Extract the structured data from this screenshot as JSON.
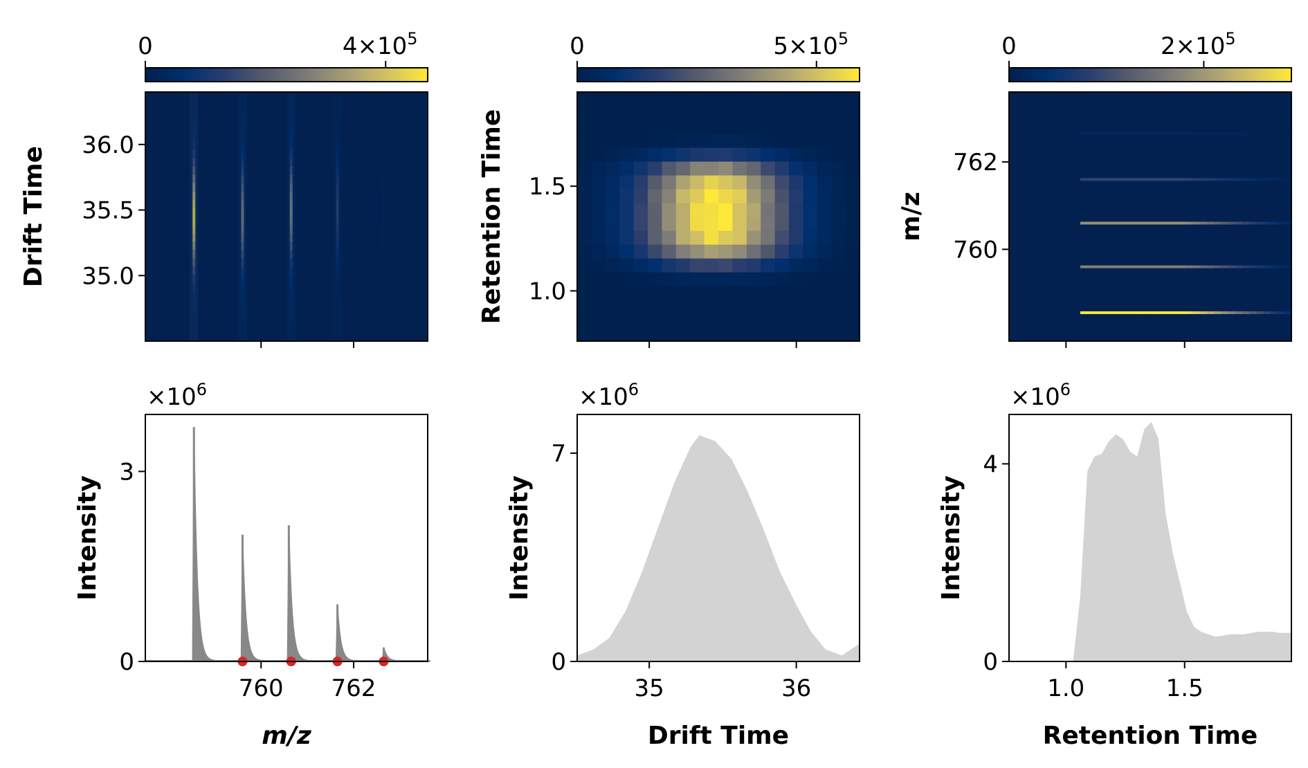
{
  "colors": {
    "colormap": [
      "#00204d",
      "#00306f",
      "#2c3e6e",
      "#575c6d",
      "#7c7b78",
      "#a69d75",
      "#d3c164",
      "#fee838"
    ],
    "background": "#022150",
    "profile_fill": "#d3d3d3",
    "spectrum_line": "#888888",
    "marker": "#d62728"
  },
  "chart_data": [
    {
      "id": "mz-vs-drift",
      "type": "heatmap",
      "xlabel": "",
      "ylabel": "Drift Time",
      "xlim": [
        757.5,
        763.6
      ],
      "ylim": [
        34.5,
        36.4
      ],
      "xticks": [
        760,
        762
      ],
      "xtick_labels": [
        "",
        ""
      ],
      "yticks": [
        35.0,
        35.5,
        36.0
      ],
      "ytick_labels": [
        "35.0",
        "35.5",
        "36.0"
      ],
      "colorbar": {
        "min": 0,
        "max": 470000,
        "ticks": [
          0,
          400000
        ],
        "tick_labels": [
          "0",
          "4×10",
          "5"
        ]
      },
      "lines": [
        {
          "x": 758.55,
          "y_center": 35.45,
          "width": 0.4,
          "peak": 470000
        },
        {
          "x": 759.6,
          "y_center": 35.45,
          "width": 0.4,
          "peak": 300000
        },
        {
          "x": 760.65,
          "y_center": 35.5,
          "width": 0.4,
          "peak": 320000
        },
        {
          "x": 761.65,
          "y_center": 35.5,
          "width": 0.4,
          "peak": 150000
        },
        {
          "x": 762.65,
          "y_center": 35.5,
          "width": 0.4,
          "peak": 30000
        }
      ]
    },
    {
      "id": "drift-vs-retention",
      "type": "heatmap",
      "xlabel": "",
      "ylabel": "Retention Time",
      "xlim": [
        34.51,
        36.43
      ],
      "ylim": [
        0.76,
        1.95
      ],
      "xticks": [
        35,
        36
      ],
      "xtick_labels": [
        "",
        ""
      ],
      "yticks": [
        1.0,
        1.5
      ],
      "ytick_labels": [
        "1.0",
        "1.5"
      ],
      "colorbar": {
        "min": 0,
        "max": 590000,
        "ticks": [
          0,
          500000
        ],
        "tick_labels": [
          "0",
          "5×10",
          "5"
        ]
      },
      "blob": {
        "x_center": 35.45,
        "x_sigma": 0.33,
        "y_center": 1.38,
        "y_sigma": 0.21,
        "peak": 590000
      }
    },
    {
      "id": "retention-vs-mz",
      "type": "heatmap",
      "xlabel": "",
      "ylabel": "m/z",
      "xlim": [
        0.76,
        1.95
      ],
      "ylim": [
        757.9,
        763.6
      ],
      "xticks": [
        1.0,
        1.5
      ],
      "xtick_labels": [
        "",
        ""
      ],
      "yticks": [
        760,
        762
      ],
      "ytick_labels": [
        "760",
        "762"
      ],
      "colorbar": {
        "min": 0,
        "max": 290000,
        "ticks": [
          0,
          200000
        ],
        "tick_labels": [
          "0",
          "2×10",
          "5"
        ]
      },
      "lines": [
        {
          "y": 758.55,
          "x_start": 1.06,
          "x_end": 1.95,
          "peak": 290000
        },
        {
          "y": 759.6,
          "x_start": 1.06,
          "x_end": 1.95,
          "peak": 170000
        },
        {
          "y": 760.6,
          "x_start": 1.06,
          "x_end": 1.95,
          "peak": 190000
        },
        {
          "y": 761.6,
          "x_start": 1.06,
          "x_end": 1.95,
          "peak": 90000
        },
        {
          "y": 762.65,
          "x_start": 1.06,
          "x_end": 1.95,
          "peak": 20000
        }
      ]
    },
    {
      "id": "mz-spectrum",
      "type": "line",
      "xlabel": "m/z",
      "ylabel": "Intensity",
      "multiplier": "×10",
      "multiplier_exp": "6",
      "xlim": [
        757.5,
        763.6
      ],
      "ylim": [
        0,
        3.9
      ],
      "xticks": [
        760,
        762
      ],
      "xtick_labels": [
        "760",
        "762"
      ],
      "yticks": [
        0,
        3
      ],
      "ytick_labels": [
        "0",
        "3"
      ],
      "peaks": [
        {
          "x": 758.55,
          "y": 3.7
        },
        {
          "x": 759.6,
          "y": 2.0
        },
        {
          "x": 760.6,
          "y": 2.15
        },
        {
          "x": 761.65,
          "y": 0.9
        },
        {
          "x": 762.65,
          "y": 0.22
        }
      ],
      "markers": [
        {
          "x": 759.6,
          "y": 0
        },
        {
          "x": 760.65,
          "y": 0
        },
        {
          "x": 761.65,
          "y": 0
        },
        {
          "x": 762.65,
          "y": 0
        }
      ]
    },
    {
      "id": "drift-profile",
      "type": "area",
      "xlabel": "Drift Time",
      "ylabel": "Intensity",
      "multiplier": "×10",
      "multiplier_exp": "6",
      "xlim": [
        34.51,
        36.43
      ],
      "ylim": [
        0,
        8.3
      ],
      "xticks": [
        35,
        36
      ],
      "xtick_labels": [
        "35",
        "36"
      ],
      "yticks": [
        0,
        7
      ],
      "ytick_labels": [
        "0",
        "7"
      ],
      "x": [
        34.51,
        34.62,
        34.73,
        34.84,
        34.95,
        35.06,
        35.17,
        35.28,
        35.34,
        35.45,
        35.56,
        35.67,
        35.78,
        35.89,
        36.0,
        36.1,
        36.2,
        36.31,
        36.43
      ],
      "y": [
        0.2,
        0.4,
        0.8,
        1.7,
        3.0,
        4.5,
        6.0,
        7.2,
        7.6,
        7.4,
        6.8,
        5.7,
        4.4,
        3.0,
        1.9,
        1.0,
        0.4,
        0.2,
        0.6
      ]
    },
    {
      "id": "retention-profile",
      "type": "area",
      "xlabel": "Retention Time",
      "ylabel": "Intensity",
      "multiplier": "×10",
      "multiplier_exp": "6",
      "xlim": [
        0.76,
        1.95
      ],
      "ylim": [
        0,
        5.0
      ],
      "xticks": [
        1.0,
        1.5
      ],
      "xtick_labels": [
        "1.0",
        "1.5"
      ],
      "yticks": [
        0,
        4
      ],
      "ytick_labels": [
        "0",
        "4"
      ],
      "x": [
        0.76,
        1.03,
        1.06,
        1.09,
        1.12,
        1.15,
        1.18,
        1.21,
        1.24,
        1.27,
        1.3,
        1.33,
        1.36,
        1.39,
        1.42,
        1.45,
        1.48,
        1.51,
        1.54,
        1.57,
        1.6,
        1.63,
        1.66,
        1.69,
        1.72,
        1.75,
        1.81,
        1.87,
        1.9,
        1.95
      ],
      "y": [
        0,
        0,
        1.3,
        3.85,
        4.15,
        4.2,
        4.45,
        4.6,
        4.5,
        4.25,
        4.15,
        4.7,
        4.85,
        4.5,
        3.0,
        2.2,
        1.6,
        1.0,
        0.7,
        0.6,
        0.55,
        0.5,
        0.52,
        0.55,
        0.55,
        0.55,
        0.6,
        0.6,
        0.58,
        0.58
      ]
    }
  ]
}
